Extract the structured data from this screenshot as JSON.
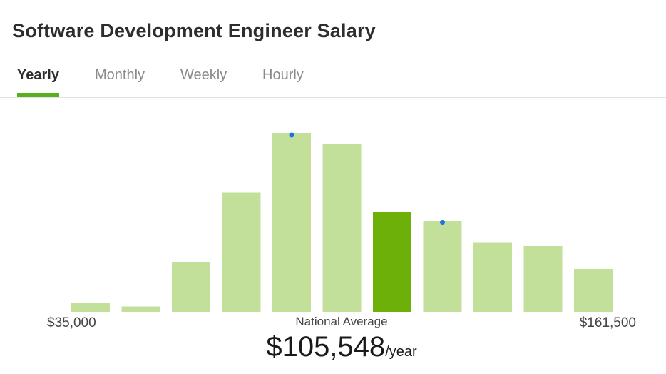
{
  "title": "Software Development Engineer Salary",
  "tabs": [
    {
      "label": "Yearly",
      "active": true
    },
    {
      "label": "Monthly",
      "active": false
    },
    {
      "label": "Weekly",
      "active": false
    },
    {
      "label": "Hourly",
      "active": false
    }
  ],
  "colors": {
    "bar": "#c3e09a",
    "highlight_bar": "#6eb00a",
    "marker": "#1f72e6",
    "tab_underline": "#58b020"
  },
  "chart_data": {
    "type": "bar",
    "categories": [
      "1",
      "2",
      "3",
      "4",
      "5",
      "6",
      "7",
      "8",
      "9",
      "10",
      "11"
    ],
    "values": [
      5,
      3,
      28,
      67,
      100,
      94,
      56,
      51,
      39,
      37,
      24
    ],
    "highlight_index": 6,
    "marker_indices": [
      4,
      7
    ],
    "x_min_label": "$35,000",
    "x_max_label": "$161,500",
    "grid": false
  },
  "national_average": {
    "label": "National Average",
    "amount": "$105,548",
    "unit": "/year"
  }
}
